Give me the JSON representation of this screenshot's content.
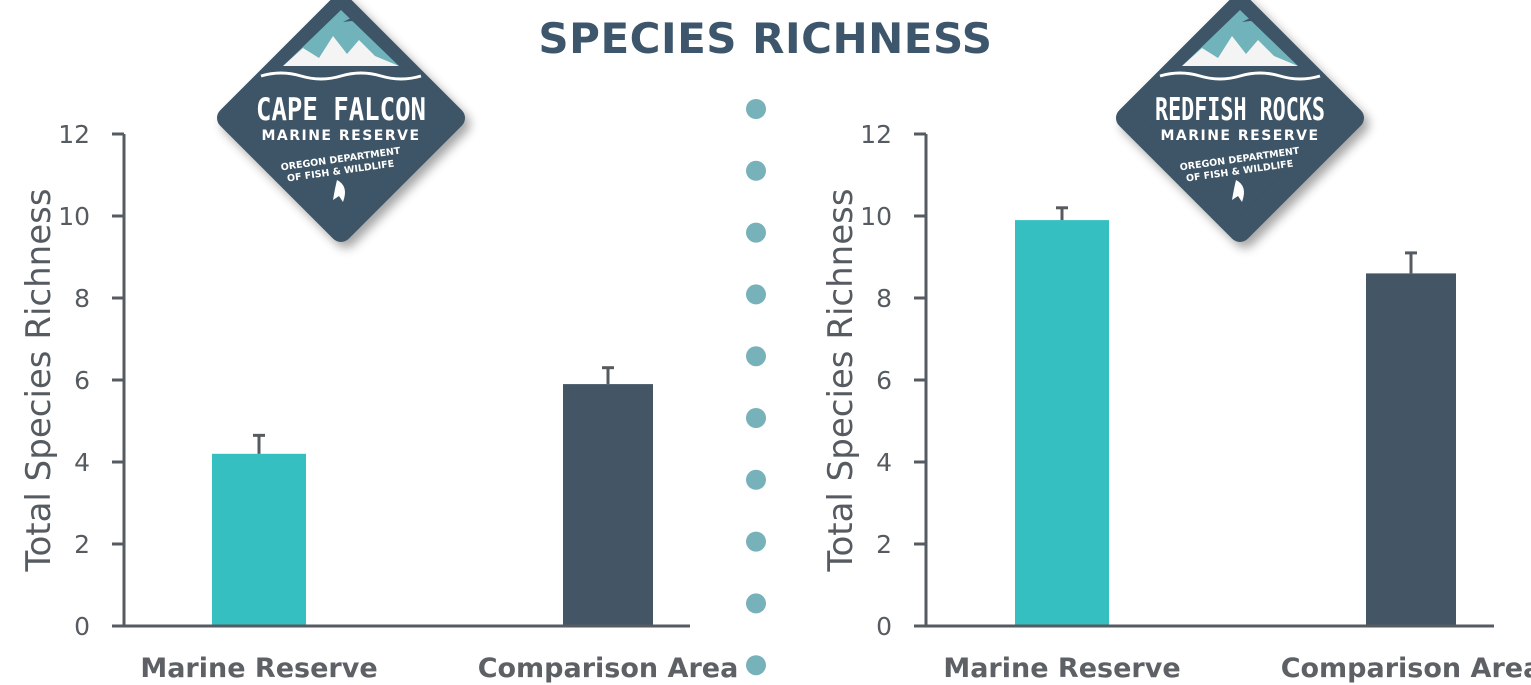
{
  "title": "SPECIES RICHNESS",
  "colors": {
    "marine_reserve": "#36bfc1",
    "comparison_area": "#445565",
    "divider_dots": "#77b1b9",
    "axis": "#555b60",
    "title": "#3d566b",
    "logo_bg": "#3d5466"
  },
  "chart_data": [
    {
      "type": "bar",
      "categories": [
        "Marine Reserve",
        "Comparison Area"
      ],
      "values": [
        4.2,
        5.9
      ],
      "error": [
        0.45,
        0.4
      ],
      "ylabel": "Total Species Richness",
      "ylim": [
        0,
        12
      ],
      "yticks": [
        "0",
        "2",
        "4",
        "6",
        "8",
        "10",
        "12"
      ],
      "bar_colors": [
        "#36bfc1",
        "#445565"
      ],
      "logo": {
        "name": "CAPE FALCON",
        "subtitle": "MARINE RESERVE",
        "agency_line1": "OREGON DEPARTMENT",
        "agency_line2": "OF FISH & WILDLIFE"
      }
    },
    {
      "type": "bar",
      "categories": [
        "Marine Reserve",
        "Comparison Area"
      ],
      "values": [
        9.9,
        8.6
      ],
      "error": [
        0.3,
        0.5
      ],
      "ylabel": "Total Species Richness",
      "ylim": [
        0,
        12
      ],
      "yticks": [
        "0",
        "2",
        "4",
        "6",
        "8",
        "10",
        "12"
      ],
      "bar_colors": [
        "#36bfc1",
        "#445565"
      ],
      "logo": {
        "name": "REDFISH ROCKS",
        "subtitle": "MARINE RESERVE",
        "agency_line1": "OREGON DEPARTMENT",
        "agency_line2": "OF FISH & WILDLIFE"
      }
    }
  ]
}
